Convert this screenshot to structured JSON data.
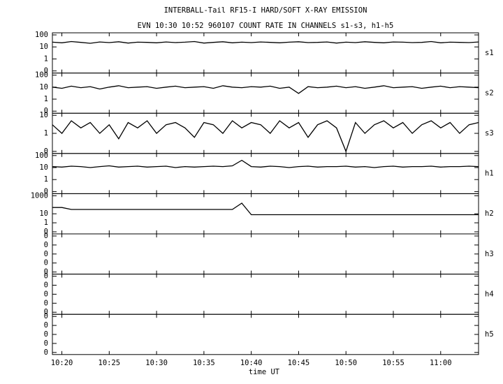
{
  "chart_data": {
    "type": "line",
    "title": "INTERBALL-Tail RF15-I HARD/SOFT X-RAY EMISSION",
    "subtitle": "EVN 10:30 10:52 960107  COUNT RATE IN CHANNELS s1-s3, h1-h5",
    "xlabel": "time UT",
    "log": true,
    "color": "#000000",
    "xlim": [
      "10:19",
      "11:04"
    ],
    "xticks": [
      "10:20",
      "10:25",
      "10:30",
      "10:35",
      "10:40",
      "10:45",
      "10:50",
      "10:55",
      "11:00"
    ],
    "x": [
      "10:19",
      "10:20",
      "10:21",
      "10:22",
      "10:23",
      "10:24",
      "10:25",
      "10:26",
      "10:27",
      "10:28",
      "10:29",
      "10:30",
      "10:31",
      "10:32",
      "10:33",
      "10:34",
      "10:35",
      "10:36",
      "10:37",
      "10:38",
      "10:39",
      "10:40",
      "10:41",
      "10:42",
      "10:43",
      "10:44",
      "10:45",
      "10:46",
      "10:47",
      "10:48",
      "10:49",
      "10:50",
      "10:51",
      "10:52",
      "10:53",
      "10:54",
      "10:55",
      "10:56",
      "10:57",
      "10:58",
      "10:59",
      "11:00",
      "11:01",
      "11:02",
      "11:03",
      "11:04"
    ],
    "panels": [
      {
        "name": "s1",
        "ylim": [
          0,
          100
        ],
        "yticks": [
          100,
          10,
          1,
          0
        ],
        "values": [
          25,
          22,
          28,
          24,
          20,
          26,
          23,
          27,
          21,
          25,
          24,
          22,
          26,
          23,
          25,
          28,
          21,
          24,
          27,
          22,
          25,
          23,
          26,
          24,
          22,
          25,
          27,
          23,
          24,
          26,
          21,
          25,
          23,
          27,
          24,
          22,
          26,
          25,
          23,
          24,
          28,
          22,
          25,
          24,
          23,
          26
        ]
      },
      {
        "name": "s2",
        "ylim": [
          0,
          100
        ],
        "yticks": [
          100,
          10,
          1,
          0
        ],
        "values": [
          10,
          8,
          12,
          9,
          11,
          7,
          10,
          13,
          9,
          10,
          11,
          8,
          10,
          12,
          9,
          10,
          11,
          8,
          13,
          10,
          9,
          11,
          10,
          12,
          8,
          10,
          3,
          11,
          9,
          10,
          12,
          9,
          11,
          8,
          10,
          13,
          9,
          10,
          11,
          8,
          10,
          12,
          9,
          11,
          10,
          9
        ]
      },
      {
        "name": "s3",
        "ylim": [
          0,
          10
        ],
        "yticks": [
          10,
          1,
          0
        ],
        "values": [
          3,
          1,
          5,
          2,
          4,
          1,
          3,
          0.5,
          4,
          2,
          5,
          1,
          3,
          4,
          2,
          0.6,
          4,
          3,
          1,
          5,
          2,
          4,
          3,
          1,
          5,
          2,
          4,
          0.6,
          3,
          5,
          2,
          0,
          4,
          1,
          3,
          5,
          2,
          4,
          1,
          3,
          5,
          2,
          4,
          1,
          3,
          4
        ]
      },
      {
        "name": "h1",
        "ylim": [
          0,
          100
        ],
        "yticks": [
          100,
          10,
          1,
          0
        ],
        "values": [
          12,
          11,
          13,
          12,
          10,
          12,
          14,
          11,
          12,
          13,
          11,
          12,
          13,
          10,
          12,
          11,
          12,
          13,
          12,
          14,
          40,
          12,
          11,
          13,
          12,
          10,
          12,
          13,
          11,
          12,
          12,
          13,
          11,
          12,
          10,
          12,
          13,
          11,
          12,
          12,
          13,
          11,
          12,
          12,
          13,
          12
        ]
      },
      {
        "name": "h2",
        "ylim": [
          0,
          1000
        ],
        "yticks": [
          1000,
          10,
          1,
          0
        ],
        "values": [
          50,
          50,
          30,
          30,
          30,
          30,
          30,
          30,
          30,
          30,
          30,
          30,
          30,
          30,
          30,
          30,
          30,
          30,
          30,
          30,
          150,
          8,
          8,
          8,
          8,
          8,
          8,
          8,
          8,
          8,
          8,
          8,
          8,
          8,
          8,
          8,
          8,
          8,
          8,
          8,
          8,
          8,
          8,
          8,
          8,
          8
        ]
      },
      {
        "name": "h3",
        "ylim": [
          0,
          0.1
        ],
        "yticks": [
          {
            "value": 0.1,
            "label": "0"
          },
          {
            "value": 0.01,
            "label": "0"
          },
          {
            "value": 0.001,
            "label": "0"
          },
          {
            "value": 0.0001,
            "label": "0"
          },
          0
        ]
      },
      {
        "name": "h4",
        "ylim": [
          0,
          0.1
        ],
        "yticks": [
          {
            "value": 0.1,
            "label": "0"
          },
          {
            "value": 0.01,
            "label": "0"
          },
          {
            "value": 0.001,
            "label": "0"
          },
          {
            "value": 0.0001,
            "label": "0"
          },
          0
        ]
      },
      {
        "name": "h5",
        "ylim": [
          0,
          0.1
        ],
        "yticks": [
          {
            "value": 0.1,
            "label": "0"
          },
          {
            "value": 0.01,
            "label": "0"
          },
          {
            "value": 0.001,
            "label": "0"
          },
          {
            "value": 0.0001,
            "label": "0"
          },
          0
        ]
      }
    ]
  }
}
